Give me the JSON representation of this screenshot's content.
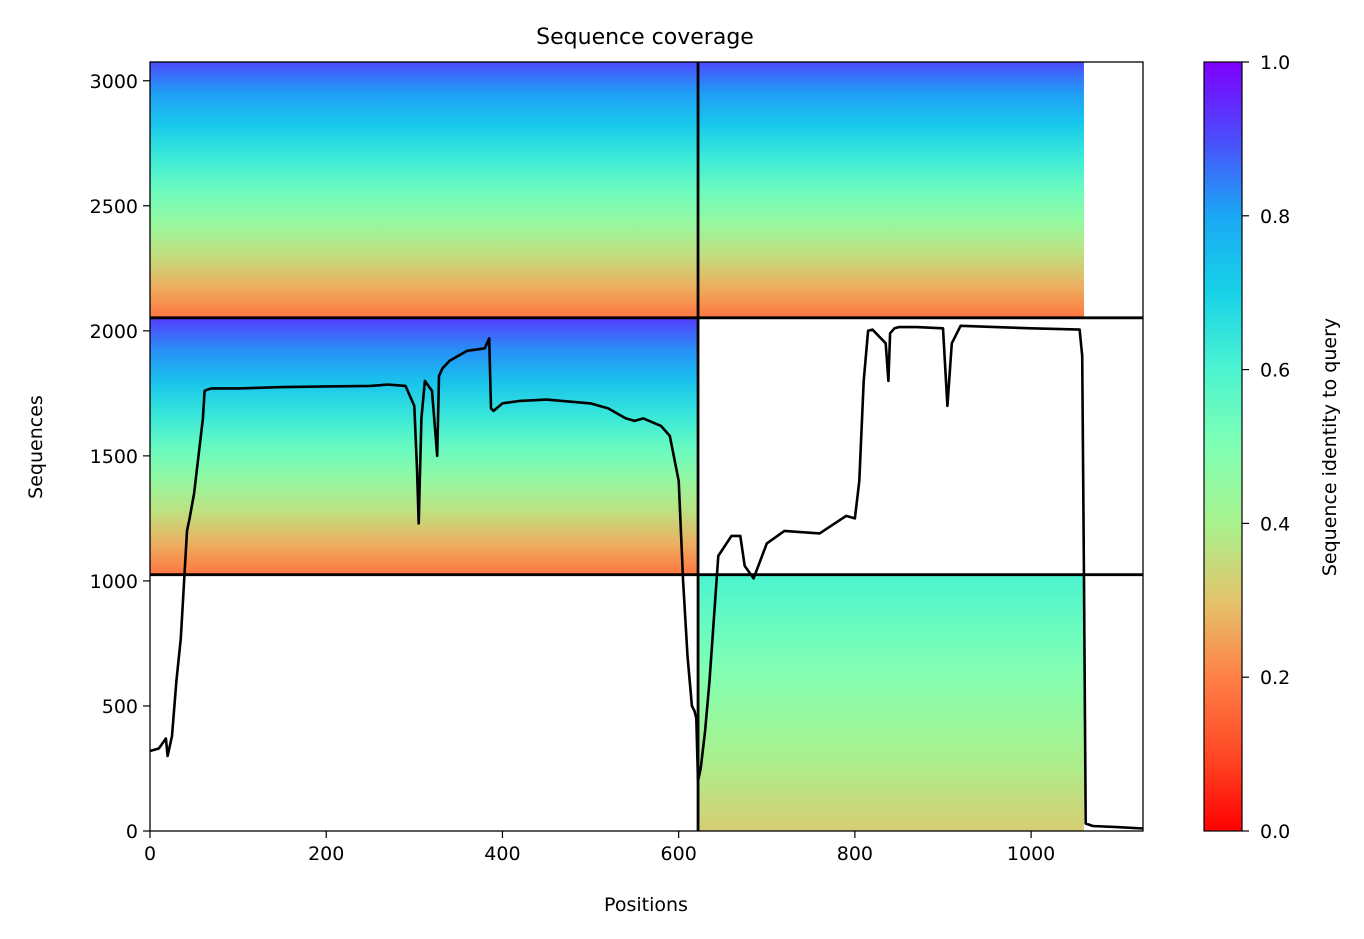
{
  "chart_data": {
    "type": "heatmap",
    "title": "Sequence coverage",
    "xlabel": "Positions",
    "ylabel": "Sequences",
    "xlim": [
      0,
      1127
    ],
    "ylim": [
      0,
      3075
    ],
    "xticks": [
      0,
      200,
      400,
      600,
      800,
      1000
    ],
    "yticks": [
      0,
      500,
      1000,
      1500,
      2000,
      2500,
      3000
    ],
    "grid": false,
    "colorbar": {
      "label": "Sequence identity to query",
      "range": [
        0,
        1
      ],
      "ticks": [
        0.0,
        0.2,
        0.4,
        0.6,
        0.8,
        1.0
      ],
      "colormap": "rainbow_r"
    },
    "divider_positions": [
      622
    ],
    "divider_sequences": [
      1025,
      2052
    ],
    "coverage_blocks": [
      {
        "name": "segment-1 paired block",
        "x": [
          0,
          622
        ],
        "y": [
          2052,
          3075
        ],
        "top_identity": 0.9,
        "bottom_identity": 0.18
      },
      {
        "name": "segment-2 paired block",
        "x": [
          622,
          1060
        ],
        "y": [
          2052,
          3075
        ],
        "top_identity": 0.9,
        "bottom_identity": 0.18
      },
      {
        "name": "segment-1 unpaired block",
        "x": [
          0,
          622
        ],
        "y": [
          1025,
          2052
        ],
        "top_identity": 0.92,
        "bottom_identity": 0.18
      },
      {
        "name": "segment-2 unpaired block",
        "x": [
          622,
          1060
        ],
        "y": [
          0,
          1025
        ],
        "top_identity": 0.6,
        "bottom_identity": 0.32
      }
    ],
    "series": [
      {
        "type": "line",
        "color": "#000000",
        "x": [
          0,
          10,
          18,
          20,
          25,
          30,
          35,
          42,
          45,
          50,
          60,
          62,
          65,
          70,
          100,
          150,
          200,
          250,
          270,
          290,
          300,
          303,
          305,
          308,
          312,
          320,
          326,
          328,
          332,
          340,
          360,
          380,
          385,
          387,
          390,
          400,
          420,
          450,
          500,
          520,
          540,
          550,
          560,
          580,
          590,
          600,
          605,
          610,
          615,
          618,
          620,
          622,
          625,
          630,
          635,
          645,
          660,
          670,
          675,
          685,
          700,
          720,
          760,
          790,
          800,
          805,
          810,
          815,
          820,
          835,
          838,
          840,
          845,
          850,
          870,
          900,
          905,
          910,
          920,
          1000,
          1055,
          1058,
          1060,
          1062,
          1070,
          1100,
          1127
        ],
        "y": [
          320,
          330,
          370,
          300,
          380,
          600,
          770,
          1200,
          1250,
          1350,
          1650,
          1760,
          1765,
          1770,
          1770,
          1775,
          1778,
          1780,
          1785,
          1780,
          1700,
          1450,
          1230,
          1650,
          1800,
          1760,
          1500,
          1820,
          1850,
          1880,
          1920,
          1930,
          1970,
          1690,
          1680,
          1710,
          1720,
          1725,
          1710,
          1690,
          1650,
          1640,
          1650,
          1620,
          1580,
          1400,
          1000,
          700,
          500,
          480,
          450,
          200,
          250,
          400,
          600,
          1100,
          1180,
          1180,
          1060,
          1010,
          1150,
          1200,
          1190,
          1260,
          1250,
          1400,
          1800,
          2000,
          2005,
          1950,
          1800,
          1990,
          2010,
          2015,
          2015,
          2010,
          1700,
          1950,
          2020,
          2010,
          2005,
          1900,
          1000,
          30,
          20,
          15,
          10
        ]
      }
    ]
  }
}
